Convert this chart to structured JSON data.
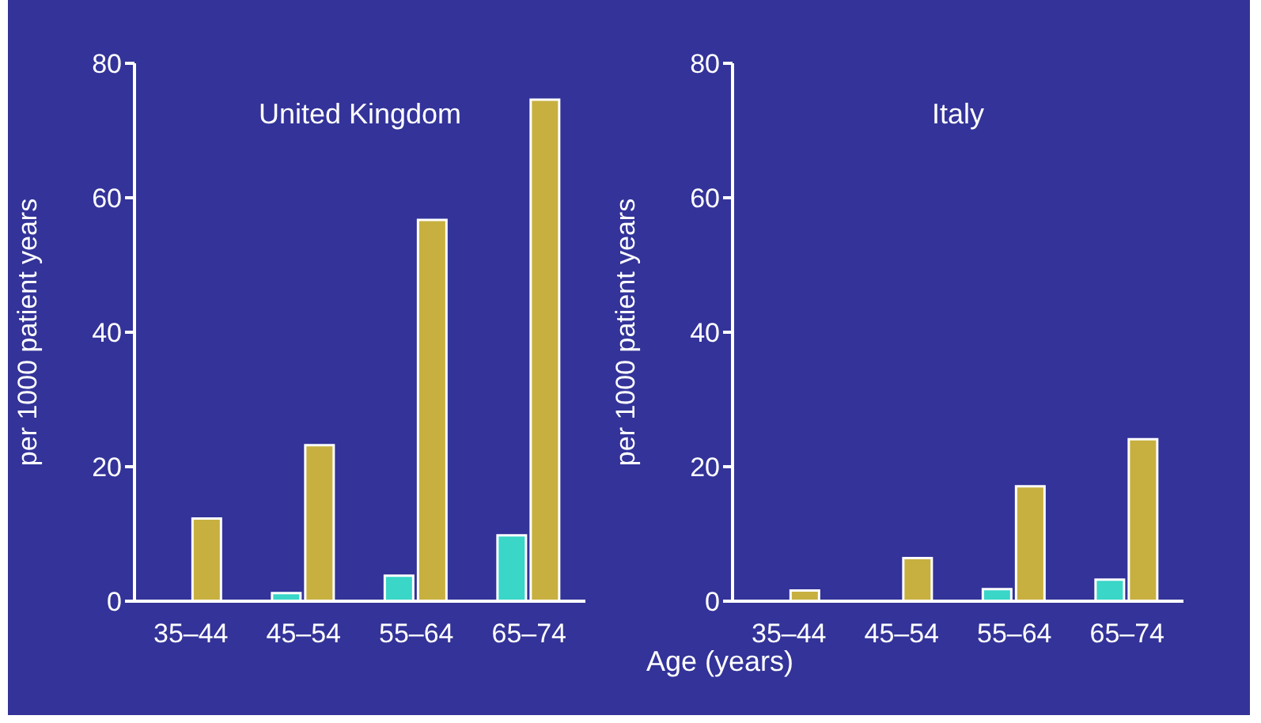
{
  "chart_data": [
    {
      "type": "bar",
      "title": "United Kingdom",
      "ylabel": "per 1000 patient years",
      "xlabel": "Age (years)",
      "categories": [
        "35–44",
        "45–54",
        "55–64",
        "65–74"
      ],
      "series": [
        {
          "color": "#3ad6c8",
          "values": [
            0,
            1.2,
            3.8,
            9.8
          ]
        },
        {
          "color": "#c8b040",
          "values": [
            12.3,
            23.2,
            56.7,
            74.6
          ]
        }
      ],
      "ylim": [
        0,
        80
      ],
      "yticks": [
        0,
        20,
        40,
        60,
        80
      ],
      "grid": false,
      "legend": false
    },
    {
      "type": "bar",
      "title": "Italy",
      "ylabel": "per 1000 patient years",
      "categories": [
        "35–44",
        "45–54",
        "55–64",
        "65–74"
      ],
      "series": [
        {
          "color": "#3ad6c8",
          "values": [
            0,
            0,
            1.8,
            3.2
          ]
        },
        {
          "color": "#c8b040",
          "values": [
            1.6,
            6.4,
            17.1,
            24.1
          ]
        }
      ],
      "ylim": [
        0,
        80
      ],
      "yticks": [
        0,
        20,
        40,
        60,
        80
      ],
      "grid": false,
      "legend": false
    }
  ]
}
